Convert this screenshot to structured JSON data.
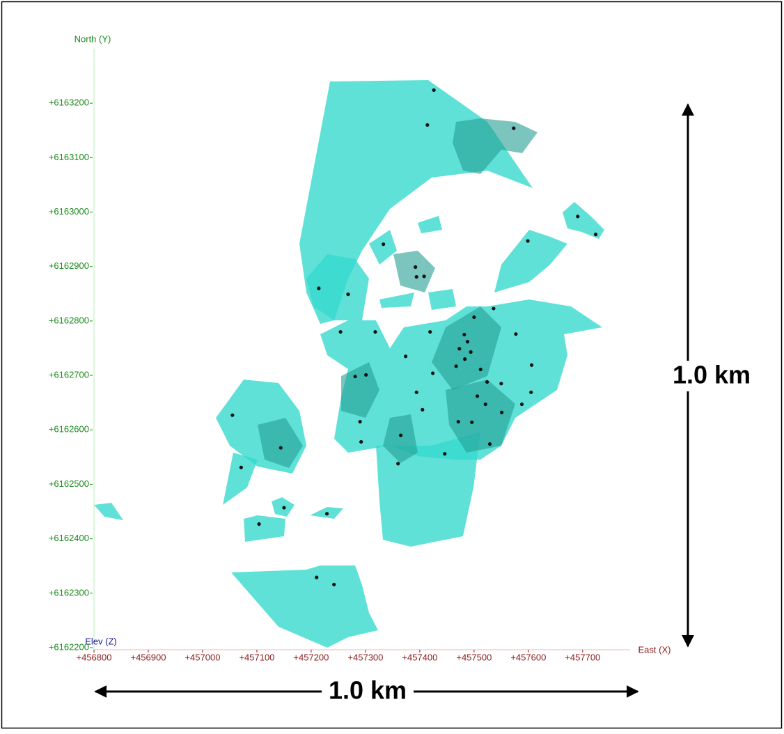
{
  "chart_data": {
    "type": "scatter",
    "x_label": "East (X)",
    "y_label": "North (Y)",
    "z_label": "Elev (Z)",
    "annotations": [
      "1.0 km",
      "1.0 km"
    ],
    "color": "#111111",
    "x_color": "#8b1a1a",
    "y_color": "#1a8a1a",
    "z_color": "#1a1a8b",
    "xlim": [
      456800,
      457790
    ],
    "ylim": [
      6162200,
      6163300
    ],
    "xticks": [
      {
        "value": 456800,
        "label": "+456800"
      },
      {
        "value": 456900,
        "label": "+456900"
      },
      {
        "value": 457000,
        "label": "+457000"
      },
      {
        "value": 457100,
        "label": "+457100"
      },
      {
        "value": 457200,
        "label": "+457200"
      },
      {
        "value": 457300,
        "label": "+457300"
      },
      {
        "value": 457400,
        "label": "+457400"
      },
      {
        "value": 457500,
        "label": "+457500"
      },
      {
        "value": 457600,
        "label": "+457600"
      },
      {
        "value": 457700,
        "label": "+457700"
      }
    ],
    "yticks": [
      {
        "value": 6162200,
        "label": "+6162200"
      },
      {
        "value": 6162300,
        "label": "+6162300"
      },
      {
        "value": 6162400,
        "label": "+6162400"
      },
      {
        "value": 6162500,
        "label": "+6162500"
      },
      {
        "value": 6162600,
        "label": "+6162600"
      },
      {
        "value": 6162700,
        "label": "+6162700"
      },
      {
        "value": 6162800,
        "label": "+6162800"
      },
      {
        "value": 6162900,
        "label": "+6162900"
      },
      {
        "value": 6163000,
        "label": "+6163000"
      },
      {
        "value": 6163100,
        "label": "+6163100"
      },
      {
        "value": 6163200,
        "label": "+6163200"
      }
    ],
    "x": [
      457426,
      457414,
      457573,
      457333,
      457599,
      457691,
      457724,
      457392,
      457394,
      457408,
      457214,
      457268,
      457254,
      457318,
      457536,
      457500,
      457419,
      457374,
      457281,
      457301,
      457482,
      457488,
      457473,
      457494,
      457483,
      457467,
      457512,
      457524,
      457550,
      457606,
      457577,
      457424,
      457394,
      457405,
      457506,
      457521,
      457471,
      457496,
      457551,
      457588,
      457290,
      457292,
      457365,
      457360,
      457446,
      457529,
      457055,
      457144,
      457071,
      457150,
      457104,
      457229,
      457210,
      457242,
      457605
    ],
    "y": [
      6163224,
      6163160,
      6163154,
      6162941,
      6162947,
      6162992,
      6162959,
      6162899,
      6162881,
      6162882,
      6162860,
      6162849,
      6162780,
      6162780,
      6162823,
      6162807,
      6162780,
      6162735,
      6162698,
      6162701,
      6162775,
      6162762,
      6162749,
      6162743,
      6162730,
      6162717,
      6162711,
      6162688,
      6162685,
      6162719,
      6162776,
      6162704,
      6162669,
      6162637,
      6162662,
      6162647,
      6162615,
      6162614,
      6162632,
      6162647,
      6162615,
      6162578,
      6162590,
      6162538,
      6162556,
      6162574,
      6162627,
      6162567,
      6162531,
      6162457,
      6162427,
      6162446,
      6162329,
      6162316,
      6162669
    ]
  }
}
